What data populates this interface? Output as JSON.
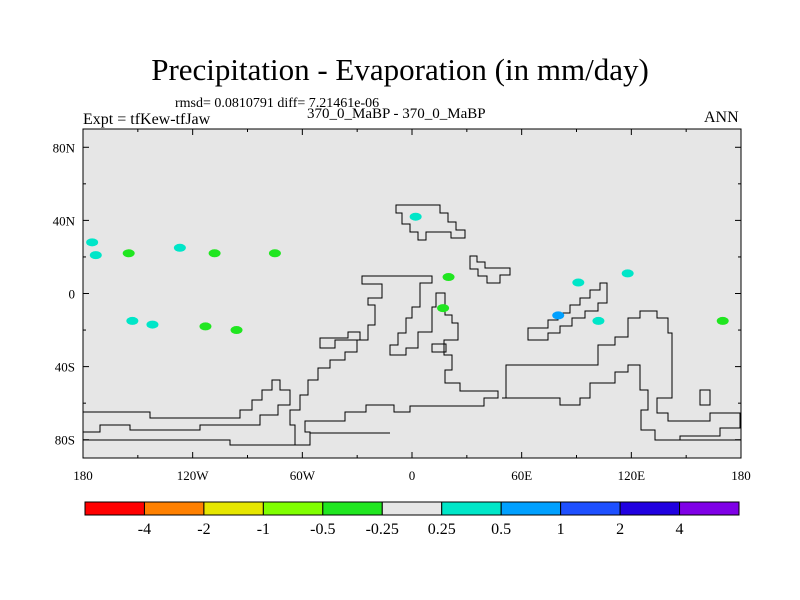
{
  "title": "Precipitation - Evaporation (in mm/day)",
  "stats": "rmsd= 0.0810791 diff= 7.21461e-06",
  "subtitle": "370_0_MaBP - 370_0_MaBP",
  "experiment": "Expt = tfKew-tfJaw",
  "season": "ANN",
  "colors": {
    "ocean_fill": "#e6e6e6",
    "coastline": "#000000"
  },
  "map": {
    "projection": "cylindrical-equidistant",
    "lon_range": [
      -180,
      180
    ],
    "lat_range": [
      -90,
      90
    ],
    "x_ticks": [
      {
        "lon": -180,
        "label": "180"
      },
      {
        "lon": -120,
        "label": "120W"
      },
      {
        "lon": -60,
        "label": "60W"
      },
      {
        "lon": 0,
        "label": "0"
      },
      {
        "lon": 60,
        "label": "60E"
      },
      {
        "lon": 120,
        "label": "120E"
      },
      {
        "lon": 180,
        "label": "180"
      }
    ],
    "y_ticks": [
      {
        "lat": 80,
        "label": "80N"
      },
      {
        "lat": 40,
        "label": "40N"
      },
      {
        "lat": 0,
        "label": "0"
      },
      {
        "lat": -40,
        "label": "40S"
      },
      {
        "lat": -80,
        "label": "80S"
      }
    ]
  },
  "colorbar": {
    "colors": [
      "#ff0000",
      "#ff8000",
      "#e6e600",
      "#80ff00",
      "#20e620",
      "#e6e6e6",
      "#00e6c8",
      "#00a0ff",
      "#1e50ff",
      "#2000e0",
      "#7f00e6"
    ],
    "labels": [
      "-4",
      "-2",
      "-1",
      "-0.5",
      "-0.25",
      "0.25",
      "0.5",
      "1",
      "2",
      "4"
    ]
  },
  "features": [
    {
      "lon": -173,
      "lat": 21,
      "color": "#00e6c8"
    },
    {
      "lon": -175,
      "lat": 28,
      "color": "#00e6c8"
    },
    {
      "lon": -155,
      "lat": 22,
      "color": "#20e620"
    },
    {
      "lon": -127,
      "lat": 25,
      "color": "#00e6c8"
    },
    {
      "lon": -108,
      "lat": 22,
      "color": "#20e620"
    },
    {
      "lon": -75,
      "lat": 22,
      "color": "#20e620"
    },
    {
      "lon": -113,
      "lat": -18,
      "color": "#20e620"
    },
    {
      "lon": -96,
      "lat": -20,
      "color": "#20e620"
    },
    {
      "lon": -153,
      "lat": -15,
      "color": "#00e6c8"
    },
    {
      "lon": -142,
      "lat": -17,
      "color": "#00e6c8"
    },
    {
      "lon": 2,
      "lat": 42,
      "color": "#00e6c8"
    },
    {
      "lon": 20,
      "lat": 9,
      "color": "#20e620"
    },
    {
      "lon": 17,
      "lat": -8,
      "color": "#20e620"
    },
    {
      "lon": 91,
      "lat": 6,
      "color": "#00e6c8"
    },
    {
      "lon": 102,
      "lat": -15,
      "color": "#00e6c8"
    },
    {
      "lon": 118,
      "lat": 11,
      "color": "#00e6c8"
    },
    {
      "lon": 170,
      "lat": -15,
      "color": "#20e620"
    },
    {
      "lon": 80,
      "lat": -12,
      "color": "#00a0ff"
    }
  ]
}
